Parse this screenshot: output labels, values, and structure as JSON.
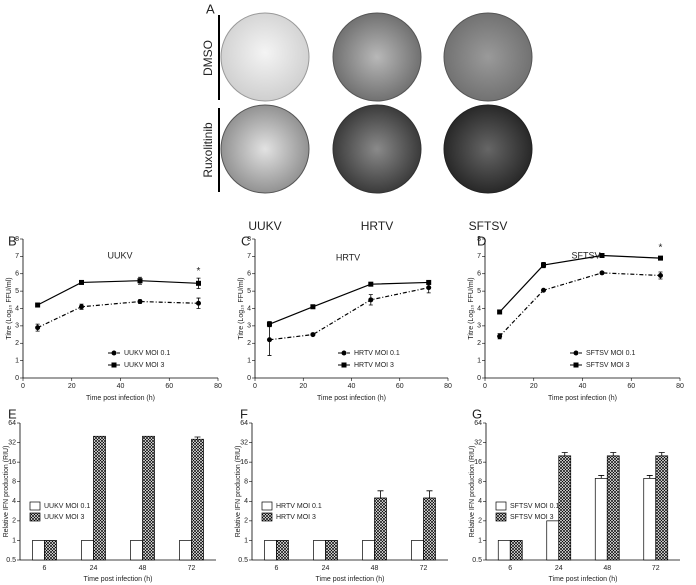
{
  "panel_a": {
    "label": "A",
    "rows": [
      "DMSO",
      "Ruxolitinib"
    ],
    "columns": [
      "UUKV",
      "HRTV",
      "SFTSV"
    ]
  },
  "chart_data": [
    {
      "type": "line",
      "panel": "B",
      "title": "UUKV",
      "x_label": "Time post infection (h)",
      "y_label": "Titre (Log₁₀ FFU/ml)",
      "xlim": [
        0,
        80
      ],
      "xticks": [
        0,
        20,
        40,
        60,
        80
      ],
      "ylim": [
        0,
        8
      ],
      "yticks": [
        0,
        1,
        2,
        3,
        4,
        5,
        6,
        7,
        8
      ],
      "legend": "lower right",
      "x": [
        6,
        24,
        48,
        72
      ],
      "series": [
        {
          "name": "UUKV MOI 0.1",
          "color": "#000000",
          "line_style": "dashdot",
          "marker": "circle",
          "values": [
            2.9,
            4.1,
            4.4,
            4.3
          ],
          "errors": [
            0.2,
            0.15,
            0.1,
            0.3
          ]
        },
        {
          "name": "UUKV MOI 3",
          "color": "#000000",
          "line_style": "solid",
          "marker": "square",
          "values": [
            4.2,
            5.5,
            5.6,
            5.45
          ],
          "errors": [
            0.05,
            0.1,
            0.2,
            0.3
          ]
        }
      ],
      "annotations": [
        {
          "text": "*",
          "x": 72,
          "y": 6.15
        }
      ]
    },
    {
      "type": "line",
      "panel": "C",
      "title": "HRTV",
      "x_label": "Time post infection (h)",
      "y_label": "Titre (Log₁₀ FFU/ml)",
      "xlim": [
        0,
        80
      ],
      "xticks": [
        0,
        20,
        40,
        60,
        80
      ],
      "ylim": [
        0,
        8
      ],
      "yticks": [
        0,
        1,
        2,
        3,
        4,
        5,
        6,
        7,
        8
      ],
      "legend": "lower right",
      "x": [
        6,
        24,
        48,
        72
      ],
      "series": [
        {
          "name": "HRTV MOI 0.1",
          "color": "#000000",
          "line_style": "dashdot",
          "marker": "circle",
          "values": [
            2.2,
            2.5,
            4.5,
            5.2
          ],
          "errors": [
            0.9,
            0.05,
            0.3,
            0.3
          ]
        },
        {
          "name": "HRTV MOI 3",
          "color": "#000000",
          "line_style": "solid",
          "marker": "square",
          "values": [
            3.1,
            4.1,
            5.4,
            5.5
          ],
          "errors": [
            0.15,
            0.05,
            0.05,
            0.1
          ]
        }
      ],
      "annotations": []
    },
    {
      "type": "line",
      "panel": "D",
      "title": "SFTSV",
      "x_label": "Time post infection (h)",
      "y_label": "Titre (Log₁₀ FFU/ml)",
      "xlim": [
        0,
        80
      ],
      "xticks": [
        0,
        20,
        40,
        60,
        80
      ],
      "ylim": [
        0,
        8
      ],
      "yticks": [
        0,
        1,
        2,
        3,
        4,
        5,
        6,
        7,
        8
      ],
      "legend": "lower right",
      "x": [
        6,
        24,
        48,
        72
      ],
      "series": [
        {
          "name": "SFTSV MOI 0.1",
          "color": "#000000",
          "line_style": "dashdot",
          "marker": "circle",
          "values": [
            2.4,
            5.05,
            6.05,
            5.9
          ],
          "errors": [
            0.15,
            0.05,
            0.05,
            0.2
          ]
        },
        {
          "name": "SFTSV MOI 3",
          "color": "#000000",
          "line_style": "solid",
          "marker": "square",
          "values": [
            3.8,
            6.5,
            7.05,
            6.9
          ],
          "errors": [
            0.05,
            0.15,
            0.05,
            0.1
          ]
        }
      ],
      "annotations": [
        {
          "text": "*",
          "x": 72,
          "y": 7.5
        }
      ]
    },
    {
      "type": "bar",
      "panel": "E",
      "x_label": "Time post infection (h)",
      "y_label": "Relative IFN  production (RIU)",
      "log_scale_y": 2,
      "ylim": [
        0.5,
        64
      ],
      "yticks": [
        0.5,
        1,
        2,
        4,
        8,
        16,
        32,
        64
      ],
      "legend": "lower left",
      "categories": [
        "6",
        "24",
        "48",
        "72"
      ],
      "series": [
        {
          "name": "UUKV MOI 0.1",
          "color": "#ffffff",
          "pattern": "none",
          "values": [
            1,
            1,
            1,
            1
          ],
          "errors": [
            0,
            0,
            0,
            0
          ]
        },
        {
          "name": "UUKV MOI 3",
          "color": "#000000",
          "pattern": "crosshatch",
          "values": [
            1,
            40,
            40,
            36
          ],
          "errors": [
            0,
            0,
            0,
            3
          ]
        }
      ]
    },
    {
      "type": "bar",
      "panel": "F",
      "x_label": "Time post infection (h)",
      "y_label": "Relative IFN  production (RIU)",
      "log_scale_y": 2,
      "ylim": [
        0.5,
        64
      ],
      "yticks": [
        0.5,
        1,
        2,
        4,
        8,
        16,
        32,
        64
      ],
      "legend": "lower left",
      "categories": [
        "6",
        "24",
        "48",
        "72"
      ],
      "series": [
        {
          "name": "HRTV MOI 0.1",
          "color": "#ffffff",
          "pattern": "none",
          "values": [
            1,
            1,
            1,
            1
          ],
          "errors": [
            0,
            0,
            0,
            0
          ]
        },
        {
          "name": "HRTV MOI 3",
          "color": "#000000",
          "pattern": "crosshatch",
          "values": [
            1,
            1,
            4.5,
            4.5
          ],
          "errors": [
            0,
            0,
            1.3,
            1.3
          ]
        }
      ]
    },
    {
      "type": "bar",
      "panel": "G",
      "x_label": "Time post infection (h)",
      "y_label": "Relative IFN  production (RIU)",
      "log_scale_y": 2,
      "ylim": [
        0.5,
        64
      ],
      "yticks": [
        0.5,
        1,
        2,
        4,
        8,
        16,
        32,
        64
      ],
      "legend": "lower left",
      "categories": [
        "6",
        "24",
        "48",
        "72"
      ],
      "series": [
        {
          "name": "SFTSV MOI 0.1",
          "color": "#ffffff",
          "pattern": "none",
          "values": [
            1,
            2,
            9,
            9
          ],
          "errors": [
            0,
            0,
            1,
            1
          ]
        },
        {
          "name": "SFTSV MOI 3",
          "color": "#000000",
          "pattern": "crosshatch",
          "values": [
            1,
            20,
            20,
            20
          ],
          "errors": [
            0,
            2.5,
            2.5,
            2.5
          ]
        }
      ]
    }
  ]
}
